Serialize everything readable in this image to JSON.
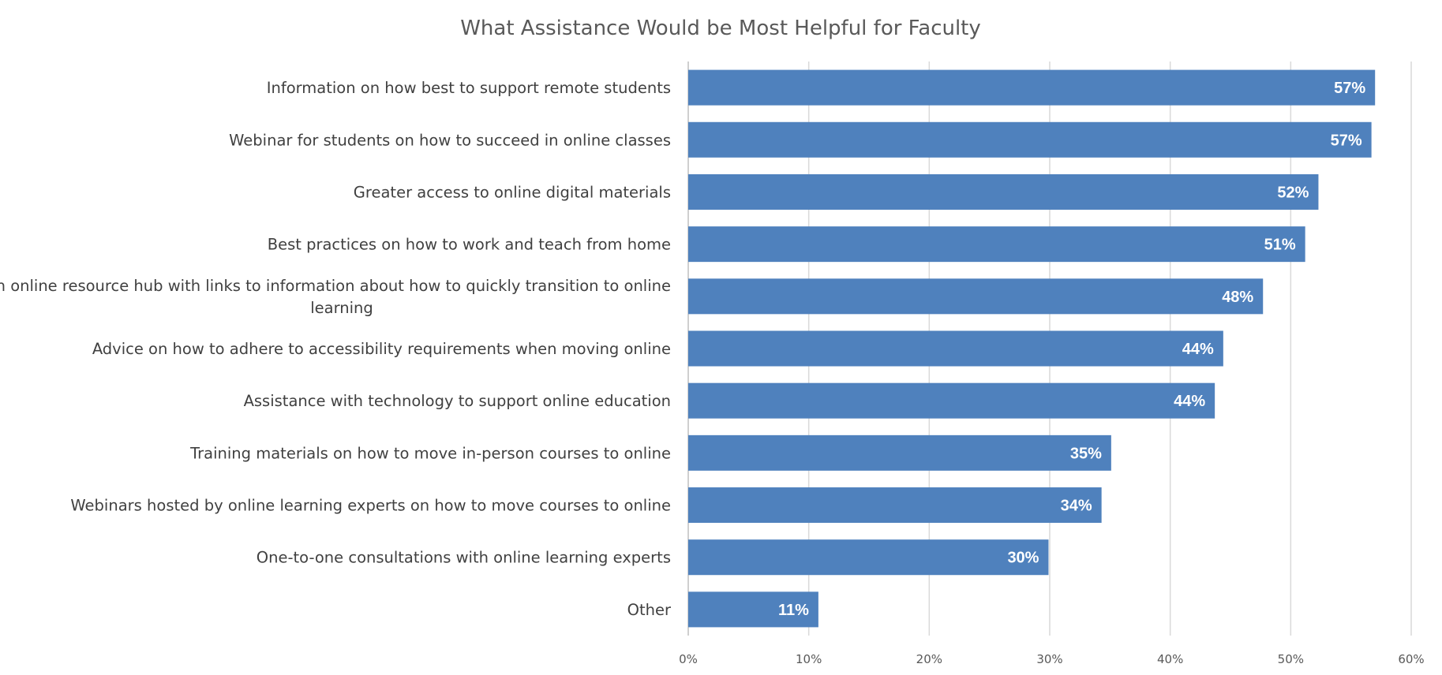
{
  "chart_data": {
    "type": "bar",
    "orientation": "horizontal",
    "title": "What Assistance Would be Most Helpful for Faculty",
    "xlabel": "",
    "ylabel": "",
    "xlim": [
      0,
      0.6
    ],
    "x_ticks": [
      0,
      0.1,
      0.2,
      0.3,
      0.4,
      0.5,
      0.6
    ],
    "x_tick_labels": [
      "0%",
      "10%",
      "20%",
      "30%",
      "40%",
      "50%",
      "60%"
    ],
    "grid": "vertical",
    "legend": "none",
    "bar_color": "#4f81bd",
    "categories": [
      [
        "Information on how best to support remote students"
      ],
      [
        "Webinar for students on how to succeed in online classes"
      ],
      [
        "Greater access to online digital materials"
      ],
      [
        "Best practices on how to work and teach from home"
      ],
      [
        "An online resource hub with links to information about how to quickly transition to online",
        "learning"
      ],
      [
        "Advice on how to adhere to accessibility requirements when moving online"
      ],
      [
        "Assistance with technology to support online education"
      ],
      [
        "Training materials on how to move in-person courses to online"
      ],
      [
        "Webinars hosted by online learning experts on how to move courses to online"
      ],
      [
        "One-to-one consultations with online learning experts"
      ],
      [
        "Other"
      ]
    ],
    "values": [
      0.57,
      0.567,
      0.523,
      0.512,
      0.477,
      0.444,
      0.437,
      0.351,
      0.343,
      0.299,
      0.108
    ],
    "data_labels": [
      "57%",
      "57%",
      "52%",
      "51%",
      "48%",
      "44%",
      "44%",
      "35%",
      "34%",
      "30%",
      "11%"
    ]
  }
}
